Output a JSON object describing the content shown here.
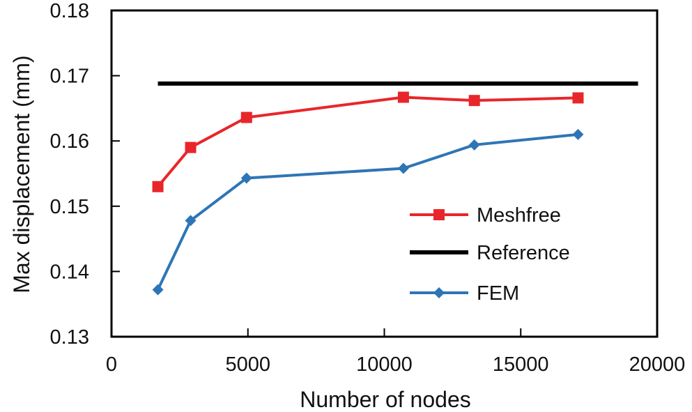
{
  "chart_data": {
    "type": "line",
    "xlabel": "Number  of nodes",
    "ylabel": "Max displacement  (mm)",
    "xlim": [
      0,
      20000
    ],
    "ylim": [
      0.13,
      0.18
    ],
    "x_ticks": [
      "0",
      "5000",
      "10000",
      "15000",
      "20000"
    ],
    "y_ticks": [
      "0.13",
      "0.14",
      "0.15",
      "0.16",
      "0.17",
      "0.18"
    ],
    "grid": false,
    "legend_position": "bottom-right",
    "series": [
      {
        "name": "Meshfree",
        "color": "#e8262a",
        "marker": "square",
        "x": [
          1700,
          2900,
          4950,
          10700,
          13300,
          17100
        ],
        "y": [
          0.153,
          0.159,
          0.1636,
          0.1667,
          0.1662,
          0.1666
        ]
      },
      {
        "name": "Reference",
        "color": "#000000",
        "marker": "none",
        "x": [
          1700,
          19300
        ],
        "y": [
          0.1688,
          0.1688
        ]
      },
      {
        "name": "FEM",
        "color": "#2e75b6",
        "marker": "diamond",
        "x": [
          1700,
          2900,
          4950,
          10700,
          13300,
          17100
        ],
        "y": [
          0.1372,
          0.1478,
          0.1543,
          0.1558,
          0.1594,
          0.161
        ]
      }
    ]
  }
}
